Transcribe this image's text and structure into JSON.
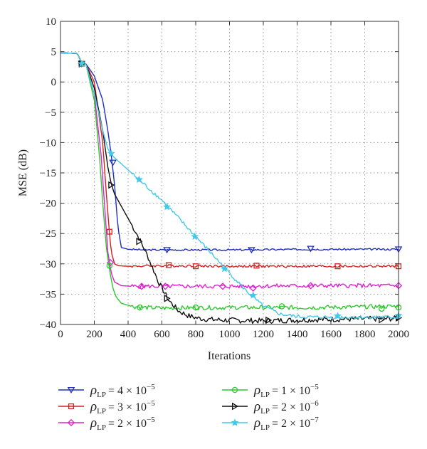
{
  "chart_data": {
    "type": "line",
    "xlabel": "Iterations",
    "ylabel": "MSE (dB)",
    "xlim": [
      0,
      2000
    ],
    "ylim": [
      -40,
      10
    ],
    "xticks": [
      "0",
      "200",
      "400",
      "600",
      "800",
      "1000",
      "1200",
      "1400",
      "1600",
      "1800",
      "2000"
    ],
    "yticks": [
      "10",
      "5",
      "0",
      "−5",
      "−10",
      "−15",
      "−20",
      "−25",
      "−30",
      "−35",
      "−40"
    ],
    "grid": true,
    "legend_position": "bottom",
    "series": [
      {
        "name": "ρLP = 4 × 10−5",
        "legend_parts": {
          "sym": "ρ",
          "sub": "LP",
          "mant": "= 4 × 10",
          "exp": "−5"
        },
        "color": "#1f2fbf",
        "marker": "triangle-down",
        "noise": 0.15,
        "x": [
          0,
          100,
          120,
          150,
          200,
          250,
          280,
          300,
          320,
          340,
          360,
          400,
          500,
          700,
          1000,
          1500,
          2000
        ],
        "y": [
          4.8,
          4.7,
          3.5,
          3.0,
          1.0,
          -3.0,
          -8.0,
          -12.0,
          -17.0,
          -24.0,
          -27.3,
          -27.6,
          -27.7,
          -27.7,
          -27.7,
          -27.6,
          -27.6
        ],
        "markers_x": [
          125,
          310,
          630,
          1130,
          1480,
          2000
        ],
        "markers_y": [
          3.0,
          -13.3,
          -27.7,
          -27.7,
          -27.5,
          -27.6
        ]
      },
      {
        "name": "ρLP = 3 × 10−5",
        "legend_parts": {
          "sym": "ρ",
          "sub": "LP",
          "mant": "= 3 × 10",
          "exp": "−5"
        },
        "color": "#d42020",
        "marker": "square",
        "noise": 0.2,
        "x": [
          0,
          100,
          120,
          150,
          200,
          250,
          270,
          290,
          300,
          320,
          340,
          400,
          600,
          1000,
          1500,
          2000
        ],
        "y": [
          4.8,
          4.7,
          3.5,
          3.0,
          0.0,
          -10.0,
          -18.0,
          -25.0,
          -28.0,
          -30.0,
          -30.3,
          -30.4,
          -30.3,
          -30.4,
          -30.4,
          -30.4
        ],
        "markers_x": [
          125,
          290,
          640,
          800,
          1160,
          1640,
          2000
        ],
        "markers_y": [
          3.0,
          -24.7,
          -30.2,
          -30.4,
          -30.3,
          -30.4,
          -30.4
        ]
      },
      {
        "name": "ρLP = 2 × 10−5",
        "legend_parts": {
          "sym": "ρ",
          "sub": "LP",
          "mant": "= 2 × 10",
          "exp": "−5"
        },
        "color": "#e020d0",
        "marker": "diamond",
        "noise": 0.35,
        "x": [
          0,
          100,
          120,
          150,
          200,
          240,
          260,
          280,
          300,
          320,
          360,
          420,
          600,
          1000,
          1500,
          2000
        ],
        "y": [
          4.8,
          4.7,
          3.5,
          3.0,
          -2.0,
          -12.0,
          -20.0,
          -28.0,
          -31.5,
          -33.0,
          -33.6,
          -33.7,
          -33.7,
          -33.7,
          -33.6,
          -33.6
        ],
        "markers_x": [
          125,
          295,
          480,
          620,
          960,
          1140,
          1480,
          2000
        ],
        "markers_y": [
          3.0,
          -29.8,
          -33.7,
          -33.7,
          -33.7,
          -34.0,
          -33.6,
          -33.6
        ]
      },
      {
        "name": "ρLP = 1 × 10−5",
        "legend_parts": {
          "sym": "ρ",
          "sub": "LP",
          "mant": "= 1 × 10",
          "exp": "−5"
        },
        "color": "#2ec82e",
        "marker": "circle",
        "noise": 0.35,
        "x": [
          0,
          100,
          120,
          150,
          200,
          230,
          250,
          270,
          290,
          310,
          330,
          360,
          420,
          500,
          600,
          1000,
          1500,
          2000
        ],
        "y": [
          4.8,
          4.7,
          3.5,
          3.0,
          -3.0,
          -12.0,
          -20.0,
          -27.0,
          -31.0,
          -34.0,
          -35.5,
          -36.5,
          -37.0,
          -37.2,
          -37.3,
          -37.2,
          -37.2,
          -37.0
        ],
        "markers_x": [
          125,
          290,
          470,
          800,
          1310,
          1900,
          2000
        ],
        "markers_y": [
          3.0,
          -30.3,
          -37.2,
          -37.2,
          -37.0,
          -37.4,
          -37.2
        ]
      },
      {
        "name": "ρLP = 2 × 10−6",
        "legend_parts": {
          "sym": "ρ",
          "sub": "LP",
          "mant": "= 2 × 10",
          "exp": "−6"
        },
        "color": "#111111",
        "marker": "triangle-right",
        "noise": 0.45,
        "x": [
          0,
          100,
          120,
          150,
          200,
          250,
          280,
          300,
          320,
          360,
          400,
          460,
          520,
          580,
          640,
          700,
          760,
          820,
          900,
          1000,
          1200,
          1500,
          2000
        ],
        "y": [
          4.8,
          4.7,
          3.5,
          3.0,
          -1.0,
          -8.0,
          -14.0,
          -16.8,
          -18.5,
          -20.5,
          -22.5,
          -25.5,
          -29.0,
          -33.0,
          -36.0,
          -37.8,
          -38.6,
          -39.0,
          -39.2,
          -39.3,
          -39.4,
          -39.2,
          -39.0
        ],
        "markers_x": [
          125,
          300,
          465,
          630,
          1230,
          1900,
          2000
        ],
        "markers_y": [
          3.0,
          -17.0,
          -26.3,
          -35.7,
          -39.3,
          -39.2,
          -38.9
        ]
      },
      {
        "name": "ρLP = 2 × 10−7",
        "legend_parts": {
          "sym": "ρ",
          "sub": "LP",
          "mant": "= 2 × 10",
          "exp": "−7"
        },
        "color": "#44c8e8",
        "marker": "star",
        "noise": 0.3,
        "x": [
          0,
          100,
          120,
          150,
          200,
          250,
          280,
          300,
          400,
          500,
          600,
          700,
          800,
          900,
          1000,
          1100,
          1200,
          1300,
          1400,
          1500,
          2000
        ],
        "y": [
          4.8,
          4.7,
          3.5,
          3.0,
          -2.0,
          -8.0,
          -11.0,
          -12.0,
          -14.5,
          -17.0,
          -19.5,
          -22.5,
          -25.5,
          -28.5,
          -31.5,
          -34.5,
          -37.0,
          -38.3,
          -38.7,
          -38.8,
          -38.8
        ],
        "markers_x": [
          125,
          300,
          465,
          630,
          795,
          970,
          1140,
          1640,
          2000
        ],
        "markers_y": [
          3.0,
          -11.8,
          -16.1,
          -20.6,
          -25.5,
          -30.8,
          -35.2,
          -38.6,
          -38.5
        ]
      }
    ]
  }
}
